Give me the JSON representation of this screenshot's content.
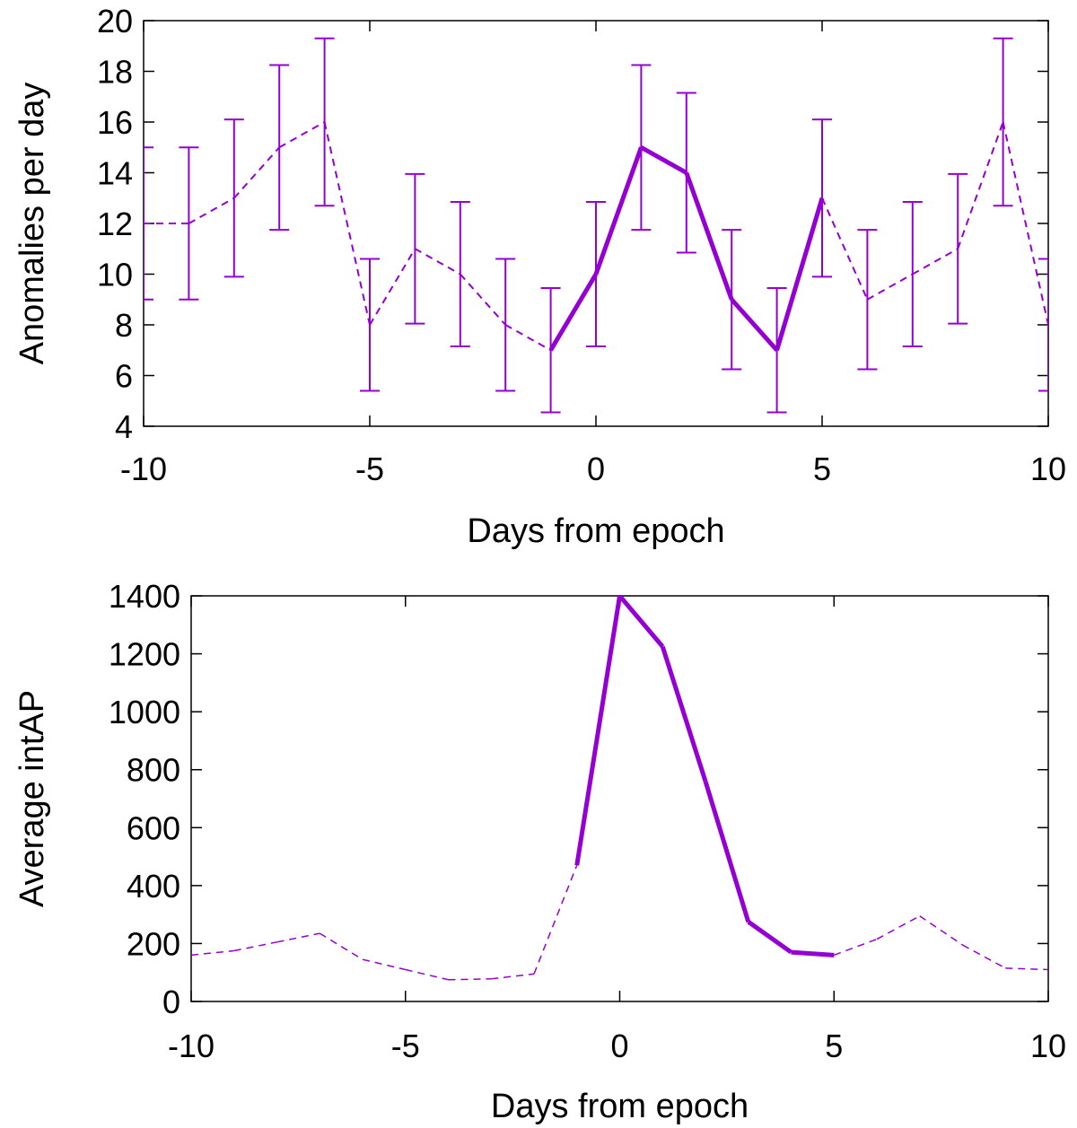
{
  "chart_data": [
    {
      "type": "line",
      "xlabel": "Days from epoch",
      "ylabel": "Anomalies per day",
      "xlim": [
        -10,
        10
      ],
      "ylim": [
        4,
        20
      ],
      "xticks": [
        -10,
        -5,
        0,
        5,
        10
      ],
      "yticks": [
        4,
        6,
        8,
        10,
        12,
        14,
        16,
        18,
        20
      ],
      "x": [
        -10,
        -9,
        -8,
        -7,
        -6,
        -5,
        -4,
        -3,
        -2,
        -1,
        0,
        1,
        2,
        3,
        4,
        5,
        6,
        7,
        8,
        9,
        10
      ],
      "values": [
        12,
        12,
        13,
        15,
        16,
        8,
        11,
        10,
        8,
        7,
        10,
        15,
        14,
        9,
        7,
        13,
        9,
        10,
        11,
        16,
        8
      ],
      "error_low": [
        9,
        9,
        9.9,
        11.75,
        12.7,
        5.4,
        8.05,
        7.15,
        5.4,
        4.55,
        7.15,
        11.75,
        10.85,
        6.25,
        4.55,
        9.9,
        6.25,
        7.15,
        8.05,
        12.7,
        5.4
      ],
      "error_high": [
        15,
        15,
        16.1,
        18.25,
        19.3,
        10.6,
        13.95,
        12.85,
        10.6,
        9.45,
        12.85,
        18.25,
        17.15,
        11.75,
        9.45,
        16.1,
        11.75,
        12.85,
        13.95,
        19.3,
        10.6
      ],
      "highlight_range": [
        -1,
        5
      ],
      "color": "#9400d3"
    },
    {
      "type": "line",
      "xlabel": "Days from epoch",
      "ylabel": "Average intAP",
      "xlim": [
        -10,
        10
      ],
      "ylim": [
        0,
        1400
      ],
      "xticks": [
        -10,
        -5,
        0,
        5,
        10
      ],
      "yticks": [
        0,
        200,
        400,
        600,
        800,
        1000,
        1200,
        1400
      ],
      "x": [
        -10,
        -9,
        -8,
        -7,
        -6,
        -5,
        -4,
        -3,
        -2,
        -1,
        0,
        1,
        2,
        3,
        4,
        5,
        6,
        7,
        8,
        9,
        10
      ],
      "values": [
        160,
        175,
        205,
        235,
        145,
        110,
        75,
        78,
        95,
        470,
        1400,
        1225,
        760,
        275,
        170,
        160,
        215,
        295,
        195,
        115,
        110
      ],
      "highlight_range": [
        -1,
        5
      ],
      "color": "#9400d3"
    }
  ]
}
